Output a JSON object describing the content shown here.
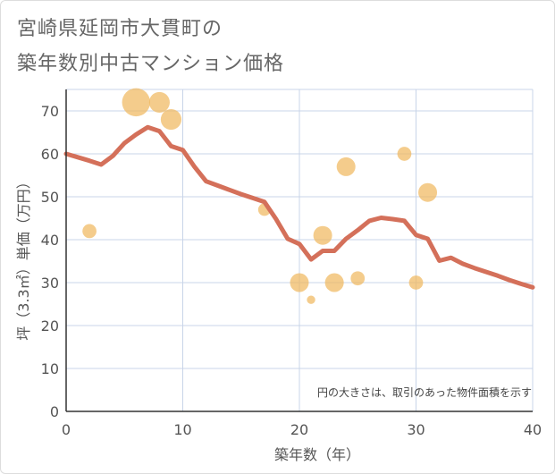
{
  "chart_data": {
    "type": "scatter",
    "title": [
      "宮崎県延岡市大貫町の",
      "築年数別中古マンション価格"
    ],
    "xlabel": "築年数（年）",
    "ylabel": "坪（3.3㎡）単価（万円）",
    "xlim": [
      0,
      40
    ],
    "ylim": [
      0,
      75
    ],
    "xticks": [
      0,
      10,
      20,
      30,
      40
    ],
    "yticks": [
      0,
      10,
      20,
      30,
      40,
      50,
      60,
      70
    ],
    "grid": true,
    "note": "円の大きさは、取引のあった物件面積を示す",
    "trend_line": {
      "x": [
        0,
        1,
        2,
        3,
        4,
        5,
        6,
        7,
        8,
        9,
        10,
        11,
        12,
        13,
        14,
        15,
        16,
        17,
        18,
        19,
        20,
        21,
        22,
        23,
        24,
        25,
        26,
        27,
        28,
        29,
        30,
        31,
        32,
        33,
        34,
        35,
        36,
        37,
        38,
        39,
        40
      ],
      "y": [
        60,
        59.2,
        58.4,
        57.5,
        59.5,
        62.5,
        64.5,
        66.2,
        65.3,
        61.8,
        60.9,
        57.0,
        53.6,
        52.6,
        51.6,
        50.6,
        49.7,
        48.8,
        44.8,
        40.2,
        39.0,
        35.4,
        37.4,
        37.4,
        40.2,
        42.2,
        44.4,
        45.1,
        44.8,
        44.4,
        41.1,
        40.2,
        35.1,
        35.8,
        34.4,
        33.4,
        32.5,
        31.6,
        30.6,
        29.7,
        28.9
      ]
    },
    "points": [
      {
        "x": 2,
        "y": 42,
        "size": 2
      },
      {
        "x": 6,
        "y": 72,
        "size": 10
      },
      {
        "x": 8,
        "y": 72,
        "size": 5
      },
      {
        "x": 9,
        "y": 68,
        "size": 5
      },
      {
        "x": 17,
        "y": 47,
        "size": 1.5
      },
      {
        "x": 20,
        "y": 30,
        "size": 4
      },
      {
        "x": 21,
        "y": 26,
        "size": 0.5
      },
      {
        "x": 22,
        "y": 41,
        "size": 4
      },
      {
        "x": 23,
        "y": 30,
        "size": 4
      },
      {
        "x": 24,
        "y": 57,
        "size": 4
      },
      {
        "x": 25,
        "y": 31,
        "size": 2
      },
      {
        "x": 29,
        "y": 60,
        "size": 2
      },
      {
        "x": 30,
        "y": 30,
        "size": 2
      },
      {
        "x": 31,
        "y": 51,
        "size": 4
      }
    ],
    "colors": {
      "line": "#d4705a",
      "bubble": "#f0b860",
      "grid": "#c8d4e8",
      "axis": "#333333"
    }
  }
}
